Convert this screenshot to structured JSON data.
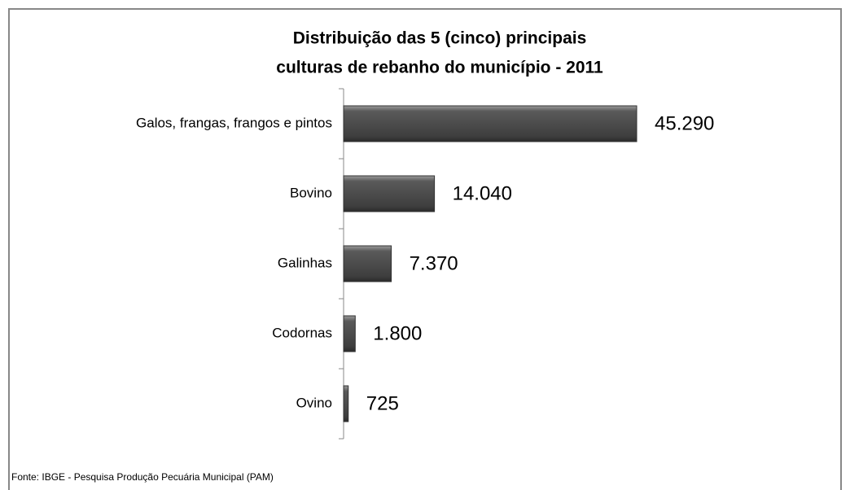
{
  "chart_data": {
    "type": "bar",
    "orientation": "horizontal",
    "title": [
      "Distribuição das 5 (cinco) principais",
      "culturas de rebanho do município - 2011"
    ],
    "categories": [
      "Galos, frangas, frangos e pintos",
      "Bovino",
      "Galinhas",
      "Codornas",
      "Ovino"
    ],
    "values": [
      45290,
      14040,
      7370,
      1800,
      725
    ],
    "value_labels": [
      "45.290",
      "14.040",
      "7.370",
      "1.800",
      "725"
    ],
    "color": "#4d4d4d",
    "source": "Fonte: IBGE - Pesquisa Produção Pecuária Municipal (PAM)"
  }
}
